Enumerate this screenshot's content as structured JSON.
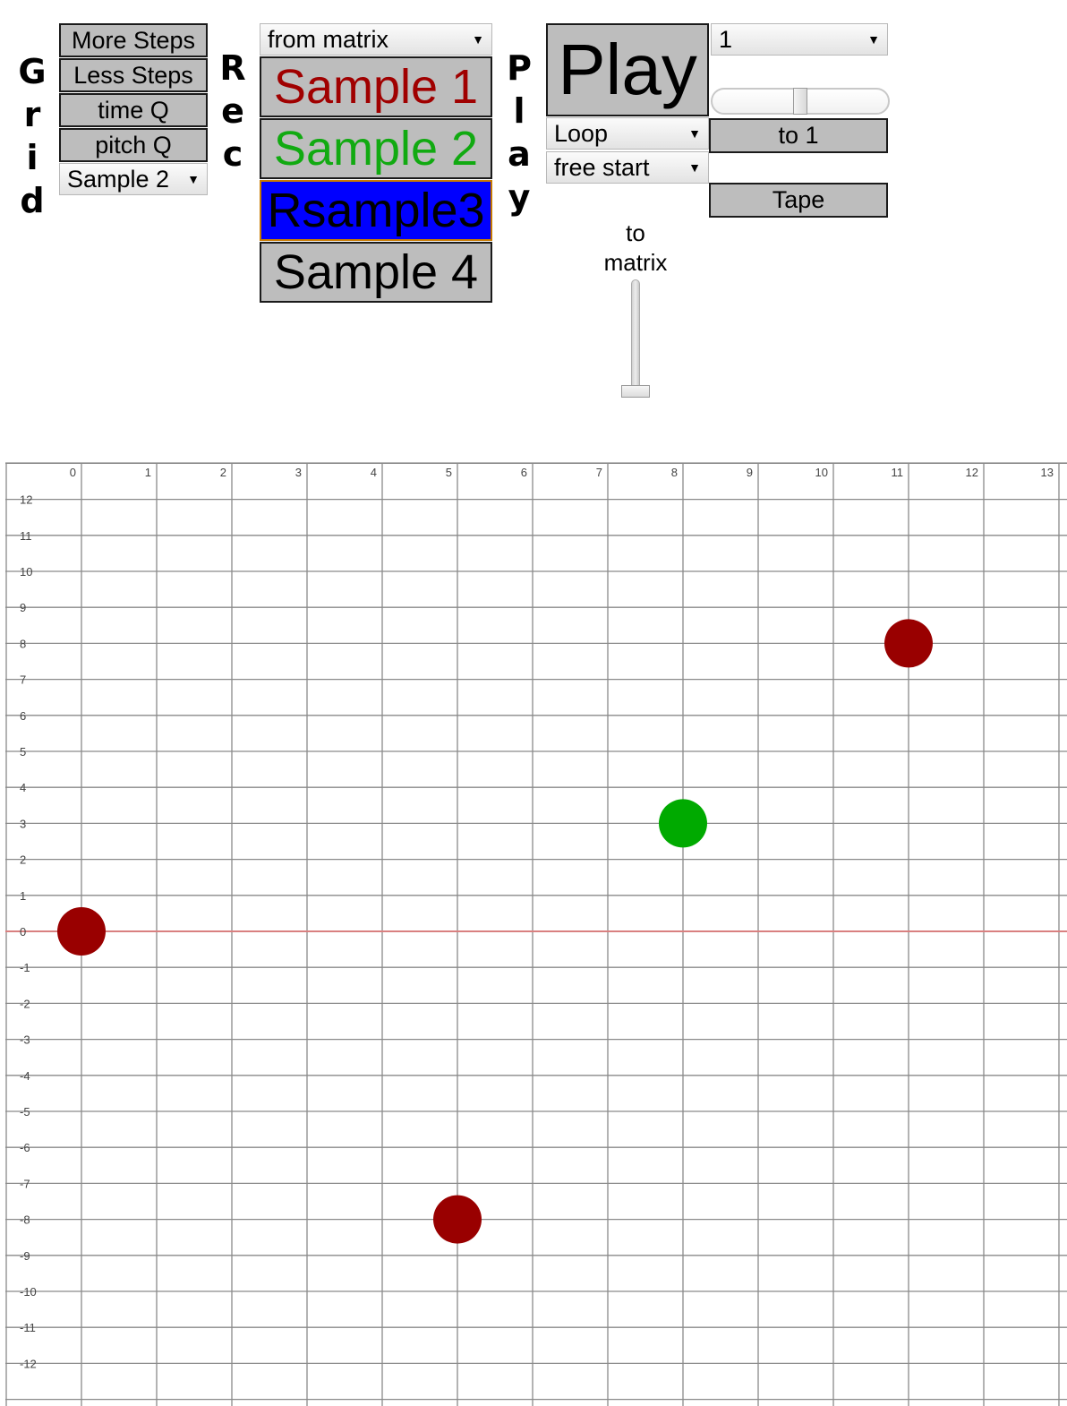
{
  "grid_section": {
    "label_letters": [
      "G",
      "r",
      "i",
      "d"
    ],
    "buttons": [
      "More Steps",
      "Less Steps",
      "time Q",
      "pitch Q"
    ],
    "sample_select": "Sample 2"
  },
  "rec_section": {
    "label_letters": [
      "R",
      "e",
      "c"
    ],
    "source_select": "from matrix",
    "samples": [
      {
        "label": "Sample 1",
        "color": "#a00000",
        "bg": "#bdbdbd"
      },
      {
        "label": "Sample 2",
        "color": "#11aa11",
        "bg": "#bdbdbd"
      },
      {
        "label": "Rsample3",
        "color": "#000000",
        "bg": "#0000ff"
      },
      {
        "label": "Sample 4",
        "color": "#000000",
        "bg": "#bdbdbd"
      }
    ]
  },
  "play_section": {
    "label_letters": [
      "P",
      "l",
      "a",
      "y"
    ],
    "play_label": "Play",
    "loop_select": "Loop",
    "start_select": "free start",
    "number_select": "1",
    "speed_level": 0.5,
    "to1_label": "to 1",
    "tape_label": "Tape",
    "to_matrix_label_line1": "to",
    "to_matrix_label_line2": "matrix",
    "to_matrix_level": 0.0
  },
  "colors": {
    "button_bg": "#bdbdbd",
    "grid_line": "#8a8a8a",
    "zero_line": "#d98080",
    "note_red": "#990000",
    "note_green": "#00aa00"
  },
  "matrix": {
    "x_ticks": [
      "0",
      "1",
      "2",
      "3",
      "4",
      "5",
      "6",
      "7",
      "8",
      "9",
      "10",
      "11",
      "12",
      "13"
    ],
    "y_ticks": [
      "12",
      "11",
      "10",
      "9",
      "8",
      "7",
      "6",
      "5",
      "4",
      "3",
      "2",
      "1",
      "0",
      "-1",
      "-2",
      "-3",
      "-4",
      "-5",
      "-6",
      "-7",
      "-8",
      "-9",
      "-10",
      "-11",
      "-12"
    ],
    "notes": [
      {
        "x": 0,
        "y": 0,
        "color": "#990000"
      },
      {
        "x": 5,
        "y": -8,
        "color": "#990000"
      },
      {
        "x": 8,
        "y": 3,
        "color": "#00aa00"
      },
      {
        "x": 11,
        "y": 8,
        "color": "#990000"
      }
    ]
  }
}
